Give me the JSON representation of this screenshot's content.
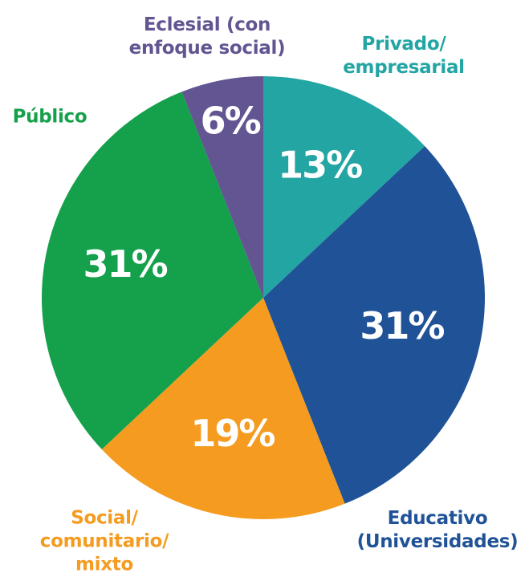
{
  "chart_data": {
    "type": "pie",
    "categories": [
      "Privado/\nempresarial",
      "Educativo\n(Universidades)",
      "Social/\ncomunitario/\nmixto",
      "Público",
      "Eclesial (con\nenfoque social)"
    ],
    "values": [
      13,
      31,
      19,
      31,
      6
    ],
    "value_labels": [
      "13%",
      "31%",
      "19%",
      "31%",
      "6%"
    ],
    "colors": [
      "#22a5a3",
      "#1f5296",
      "#f59b1f",
      "#15a04b",
      "#625592"
    ]
  }
}
